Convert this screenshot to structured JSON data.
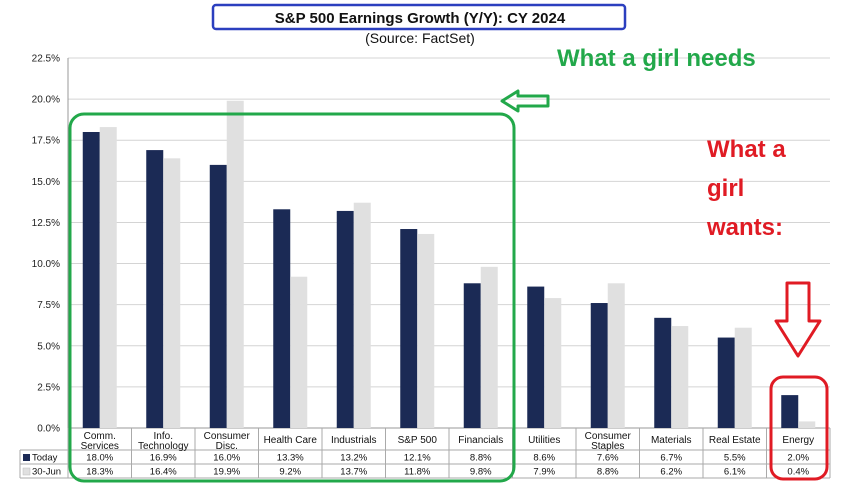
{
  "chart_data": {
    "type": "bar",
    "title": "S&P 500 Earnings Growth (Y/Y): CY 2024",
    "subtitle": "(Source: FactSet)",
    "categories": [
      [
        "Comm.",
        "Services"
      ],
      [
        "Info.",
        "Technology"
      ],
      [
        "Consumer",
        "Disc."
      ],
      [
        "Health Care"
      ],
      [
        "Industrials"
      ],
      [
        "S&P 500"
      ],
      [
        "Financials"
      ],
      [
        "Utilities"
      ],
      [
        "Consumer",
        "Staples"
      ],
      [
        "Materials"
      ],
      [
        "Real Estate"
      ],
      [
        "Energy"
      ]
    ],
    "series": [
      {
        "name": "Today",
        "color": "#1b2a55",
        "values": [
          18.0,
          16.9,
          16.0,
          13.3,
          13.2,
          12.1,
          8.8,
          8.6,
          7.6,
          6.7,
          5.5,
          2.0
        ],
        "labels": [
          "18.0%",
          "16.9%",
          "16.0%",
          "13.3%",
          "13.2%",
          "12.1%",
          "8.8%",
          "8.6%",
          "7.6%",
          "6.7%",
          "5.5%",
          "2.0%"
        ]
      },
      {
        "name": "30-Jun",
        "color": "#e0e0e0",
        "values": [
          18.3,
          16.4,
          19.9,
          9.2,
          13.7,
          11.8,
          9.8,
          7.9,
          8.8,
          6.2,
          6.1,
          0.4
        ],
        "labels": [
          "18.3%",
          "16.4%",
          "19.9%",
          "9.2%",
          "13.7%",
          "11.8%",
          "9.8%",
          "7.9%",
          "8.8%",
          "6.2%",
          "6.1%",
          "0.4%"
        ]
      }
    ],
    "ylim": [
      0,
      22.5
    ],
    "yticks": [
      "0.0%",
      "2.5%",
      "5.0%",
      "7.5%",
      "10.0%",
      "12.5%",
      "15.0%",
      "17.5%",
      "20.0%",
      "22.5%"
    ],
    "grid": true,
    "legend": "data table below chart"
  },
  "annotations": {
    "green_text": "What a girl needs",
    "red_text_lines": [
      "What a",
      "girl",
      "wants:"
    ],
    "colors": {
      "title_box": "#2b3fbf",
      "green": "#22a84a",
      "red": "#e01b24"
    }
  }
}
